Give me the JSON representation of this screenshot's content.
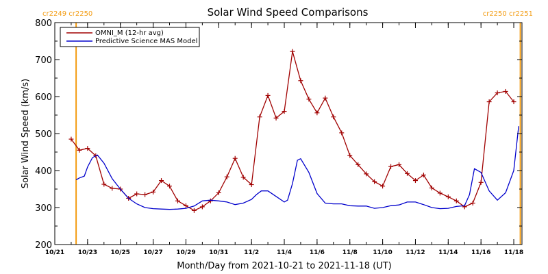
{
  "colors": {
    "omni": "#a00000",
    "model": "#0000cc",
    "rotation_line": "#f39c12",
    "axes": "#000000"
  },
  "chart_data": {
    "type": "line",
    "title": "Solar Wind Speed Comparisons",
    "xlabel": "Month/Day from 2021-10-21 to 2021-11-18 (UT)",
    "ylabel": "Solar Wind Speed (km/s)",
    "ylim": [
      200,
      800
    ],
    "yticks": [
      200,
      300,
      400,
      500,
      600,
      700,
      800
    ],
    "xlim": [
      0,
      28.5
    ],
    "xticks": [
      {
        "x": 0,
        "label": "10/21"
      },
      {
        "x": 2,
        "label": "10/23"
      },
      {
        "x": 4,
        "label": "10/25"
      },
      {
        "x": 6,
        "label": "10/27"
      },
      {
        "x": 8,
        "label": "10/29"
      },
      {
        "x": 10,
        "label": "10/31"
      },
      {
        "x": 12,
        "label": "11/2"
      },
      {
        "x": 14,
        "label": "11/4"
      },
      {
        "x": 16,
        "label": "11/6"
      },
      {
        "x": 18,
        "label": "11/8"
      },
      {
        "x": 20,
        "label": "11/10"
      },
      {
        "x": 22,
        "label": "11/12"
      },
      {
        "x": 24,
        "label": "11/14"
      },
      {
        "x": 26,
        "label": "11/16"
      },
      {
        "x": 28,
        "label": "11/18"
      }
    ],
    "legend": "top-left",
    "rotation_markers": [
      {
        "x": 1.3,
        "label": "cr2249 cr2250",
        "position": "left"
      },
      {
        "x": 28.4,
        "label": "cr2250 cr2251",
        "position": "right"
      }
    ],
    "series": [
      {
        "name": "OMNI_M (12-hr avg)",
        "marker": "plus",
        "x": [
          1.0,
          1.5,
          2.0,
          2.5,
          3.0,
          3.5,
          4.0,
          4.5,
          5.0,
          5.5,
          6.0,
          6.5,
          7.0,
          7.5,
          8.0,
          8.5,
          9.0,
          9.5,
          10.0,
          10.5,
          11.0,
          11.5,
          12.0,
          12.5,
          13.0,
          13.5,
          14.0,
          14.5,
          15.0,
          15.5,
          16.0,
          16.5,
          17.0,
          17.5,
          18.0,
          18.5,
          19.0,
          19.5,
          20.0,
          20.5,
          21.0,
          21.5,
          22.0,
          22.5,
          23.0,
          23.5,
          24.0,
          24.5,
          25.0,
          25.5,
          26.0,
          26.5,
          27.0,
          27.5,
          28.0
        ],
        "values": [
          485,
          455,
          460,
          440,
          363,
          352,
          350,
          325,
          337,
          335,
          342,
          373,
          358,
          318,
          305,
          292,
          302,
          318,
          340,
          383,
          433,
          382,
          362,
          545,
          603,
          542,
          560,
          722,
          643,
          593,
          556,
          596,
          545,
          502,
          441,
          416,
          391,
          370,
          358,
          411,
          416,
          392,
          373,
          388,
          353,
          339,
          329,
          318,
          302,
          312,
          368,
          586,
          610,
          614,
          586
        ]
      },
      {
        "name": "Predictive Science MAS Model",
        "marker": "none",
        "x": [
          1.3,
          1.5,
          1.8,
          2.0,
          2.3,
          2.6,
          3.0,
          3.5,
          4.0,
          4.5,
          5.0,
          5.5,
          6.0,
          6.5,
          7.0,
          7.5,
          8.0,
          8.5,
          9.0,
          9.5,
          10.0,
          10.5,
          11.0,
          11.5,
          12.0,
          12.3,
          12.6,
          13.0,
          13.5,
          14.0,
          14.2,
          14.5,
          14.8,
          15.0,
          15.5,
          16.0,
          16.5,
          17.0,
          17.5,
          18.0,
          18.5,
          19.0,
          19.5,
          20.0,
          20.5,
          21.0,
          21.5,
          22.0,
          22.5,
          23.0,
          23.5,
          24.0,
          24.5,
          25.0,
          25.3,
          25.6,
          26.0,
          26.5,
          27.0,
          27.5,
          28.0,
          28.3
        ],
        "values": [
          375,
          380,
          385,
          410,
          435,
          442,
          420,
          378,
          350,
          325,
          310,
          300,
          297,
          296,
          295,
          296,
          298,
          304,
          318,
          320,
          318,
          315,
          308,
          312,
          322,
          335,
          345,
          345,
          330,
          315,
          320,
          365,
          428,
          432,
          395,
          338,
          312,
          310,
          310,
          305,
          304,
          304,
          298,
          300,
          305,
          307,
          315,
          315,
          308,
          300,
          297,
          298,
          303,
          305,
          335,
          405,
          395,
          345,
          320,
          340,
          400,
          520
        ]
      }
    ]
  }
}
